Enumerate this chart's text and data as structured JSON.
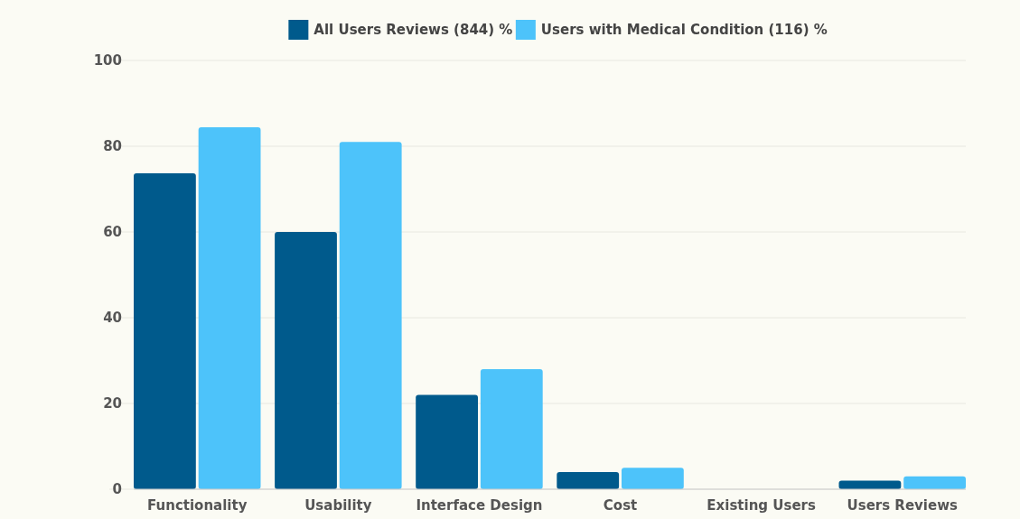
{
  "chart_data": {
    "type": "bar",
    "categories": [
      "Functionality",
      "Usability",
      "Interface Design",
      "Cost",
      "Existing Users",
      "Users Reviews"
    ],
    "series": [
      {
        "name": "All Users Reviews (844) %",
        "color": "#005a8c",
        "values": [
          73.7,
          60,
          22,
          4,
          0,
          2
        ]
      },
      {
        "name": "Users with Medical Condition (116) %",
        "color": "#4dc3fa",
        "values": [
          84.4,
          81,
          28,
          5,
          0,
          3
        ]
      }
    ],
    "ylim": [
      0,
      100
    ],
    "yticks": [
      0,
      20,
      40,
      60,
      80,
      100
    ],
    "grid": "y",
    "legend": "top"
  }
}
